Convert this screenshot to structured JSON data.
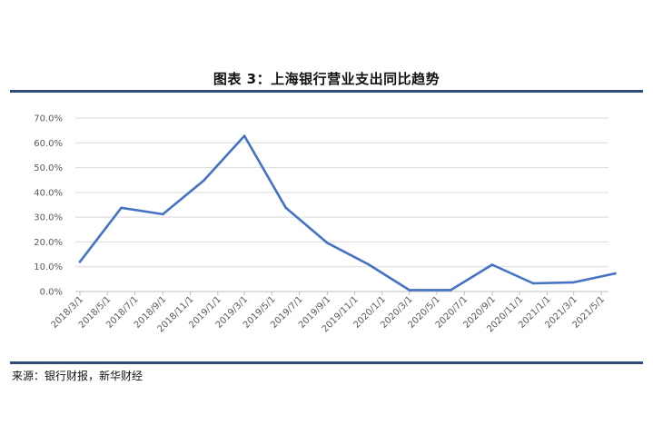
{
  "title": "图表 3：上海银行营业支出同比趋势",
  "source": "来源：银行财报，新华财经",
  "chart_data": {
    "type": "line",
    "title": "图表 3：上海银行营业支出同比趋势",
    "xlabel": "",
    "ylabel": "",
    "ylim": [
      0,
      70
    ],
    "y_ticks": [
      "0.0%",
      "10.0%",
      "20.0%",
      "30.0%",
      "40.0%",
      "50.0%",
      "60.0%",
      "70.0%"
    ],
    "grid": true,
    "legend": "none",
    "color": "#4472c4",
    "categories": [
      "2018/3/1",
      "2018/5/1",
      "2018/7/1",
      "2018/9/1",
      "2018/11/1",
      "2019/1/1",
      "2019/3/1",
      "2019/5/1",
      "2019/7/1",
      "2019/9/1",
      "2019/11/1",
      "2020/1/1",
      "2020/3/1",
      "2020/5/1",
      "2020/7/1",
      "2020/9/1",
      "2020/11/1",
      "2021/1/1",
      "2021/3/1",
      "2021/5/1"
    ],
    "points": [
      {
        "x": "2018/3/1",
        "y": 12.0
      },
      {
        "x": "2018/6/1",
        "y": 33.8
      },
      {
        "x": "2018/9/1",
        "y": 31.2
      },
      {
        "x": "2018/12/1",
        "y": 44.8
      },
      {
        "x": "2019/3/1",
        "y": 62.8
      },
      {
        "x": "2019/6/1",
        "y": 33.8
      },
      {
        "x": "2019/9/1",
        "y": 19.6
      },
      {
        "x": "2019/12/1",
        "y": 11.0
      },
      {
        "x": "2020/3/1",
        "y": 0.6
      },
      {
        "x": "2020/6/1",
        "y": 0.6
      },
      {
        "x": "2020/9/1",
        "y": 10.8
      },
      {
        "x": "2020/12/1",
        "y": 3.3
      },
      {
        "x": "2021/3/1",
        "y": 3.7
      },
      {
        "x": "2021/6/1",
        "y": 7.3
      }
    ]
  }
}
